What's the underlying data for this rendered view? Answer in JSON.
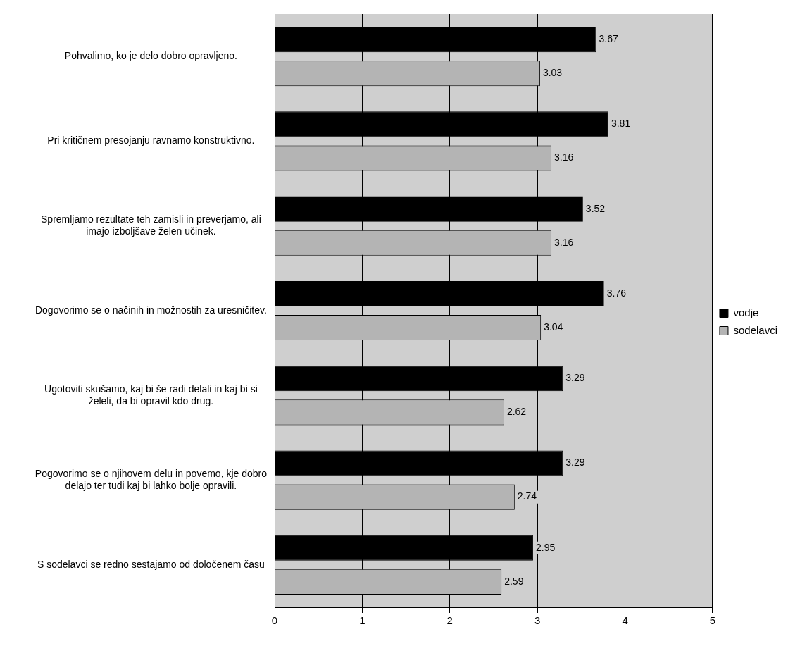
{
  "chart_data": {
    "type": "bar",
    "orientation": "horizontal",
    "categories": [
      "Pohvalimo, ko je delo dobro opravljeno.",
      "Pri kritičnem presojanju ravnamo konstruktivno.",
      "Spremljamo rezultate teh zamisli in preverjamo, ali imajo izboljšave želen učinek.",
      "Dogovorimo se o načinih in možnostih za uresničitev.",
      "Ugotoviti skušamo, kaj bi še radi delali in kaj bi si želeli, da bi opravil kdo drug.",
      "Pogovorimo se o njihovem delu in povemo, kje dobro delajo ter tudi kaj bi lahko bolje opravili.",
      "S sodelavci se redno sestajamo od določenem času"
    ],
    "series": [
      {
        "name": "vodje",
        "color": "#000000",
        "values": [
          3.67,
          3.81,
          3.52,
          3.76,
          3.29,
          3.29,
          2.95
        ]
      },
      {
        "name": "sodelavci",
        "color": "#b4b4b4",
        "values": [
          3.03,
          3.16,
          3.16,
          3.04,
          2.62,
          2.74,
          2.59
        ]
      }
    ],
    "xlim": [
      0,
      5
    ],
    "xticks": [
      0,
      1,
      2,
      3,
      4,
      5
    ],
    "grid": "x",
    "legend": "right",
    "data_labels": true
  }
}
